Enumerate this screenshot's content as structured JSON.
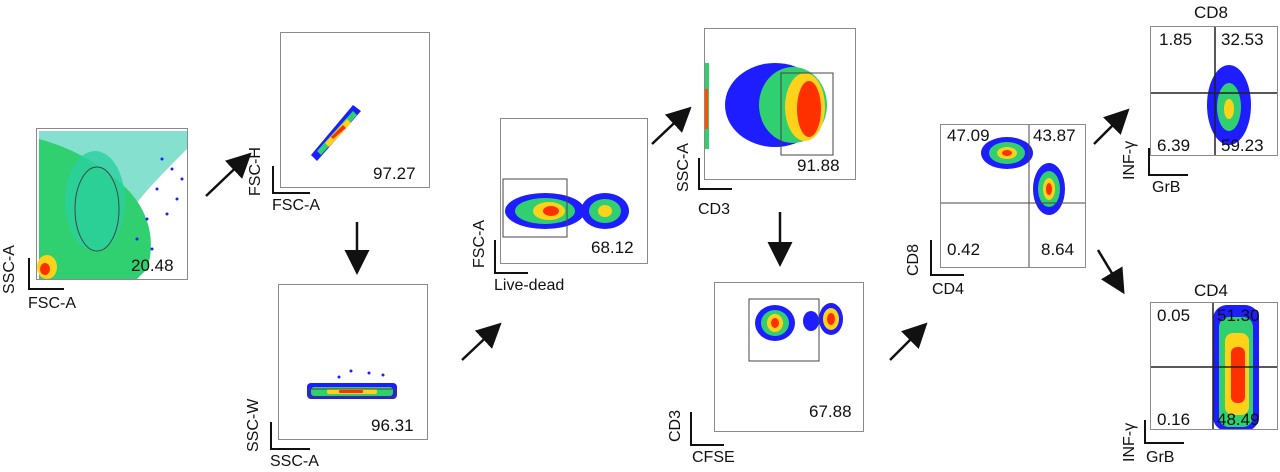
{
  "panels": {
    "p1": {
      "value": "20.48",
      "x_label": "FSC-A",
      "y_label": "SSC-A"
    },
    "p2": {
      "value": "97.27",
      "x_label": "FSC-A",
      "y_label": "FSC-H"
    },
    "p3": {
      "value": "96.31",
      "x_label": "SSC-A",
      "y_label": "SSC-W"
    },
    "p4": {
      "value": "68.12",
      "x_label": "Live-dead",
      "y_label": "FSC-A"
    },
    "p5": {
      "value": "91.88",
      "x_label": "CD3",
      "y_label": "SSC-A"
    },
    "p6": {
      "value": "67.88",
      "x_label": "CFSE",
      "y_label": "CD3"
    },
    "p7": {
      "q_ul": "47.09",
      "q_ur": "43.87",
      "q_ll": "0.42",
      "q_lr": "8.64",
      "x_label": "CD4",
      "y_label": "CD8"
    },
    "p8": {
      "title": "CD8",
      "q_ul": "1.85",
      "q_ur": "32.53",
      "q_ll": "6.39",
      "q_lr": "59.23",
      "x_label": "GrB",
      "y_label": "INF-γ"
    },
    "p9": {
      "title": "CD4",
      "q_ul": "0.05",
      "q_ur": "51.30",
      "q_ll": "0.16",
      "q_lr": "48.49",
      "x_label": "GrB",
      "y_label": "INF-γ"
    }
  },
  "colors": {
    "density_low": "#1a1aff",
    "density_mid": "#20d0a0",
    "density_high": "#ffe020",
    "density_peak": "#ff2000",
    "gate": "#444444",
    "arrow": "#111111"
  }
}
